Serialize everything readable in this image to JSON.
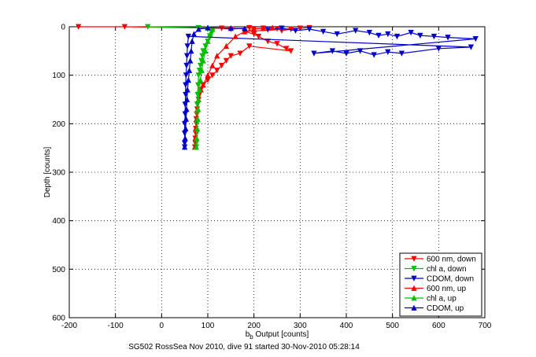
{
  "chart_data": {
    "type": "scatter",
    "xlabel_main": "b",
    "xlabel_sub": "b",
    "xlabel_rest": " Output [counts]",
    "ylabel": "Depth [counts]",
    "caption": "SG502 RossSea Nov 2010, dive 91 started 30-Nov-2010 05:28:14",
    "xlim": [
      -200,
      700
    ],
    "ylim": [
      0,
      600
    ],
    "y_reversed": true,
    "xticks": [
      -200,
      -100,
      0,
      100,
      200,
      300,
      400,
      500,
      600,
      700
    ],
    "yticks": [
      0,
      100,
      200,
      300,
      400,
      500,
      600
    ],
    "grid": true,
    "legend_position": "bottom-right",
    "series": [
      {
        "name": "600 nm, down",
        "color": "#ff0000",
        "marker": "triangle-down",
        "points": [
          [
            -180,
            0
          ],
          [
            -80,
            0
          ],
          [
            130,
            3
          ],
          [
            150,
            5
          ],
          [
            190,
            2
          ],
          [
            200,
            4
          ],
          [
            220,
            3
          ],
          [
            230,
            6
          ],
          [
            250,
            4
          ],
          [
            260,
            8
          ],
          [
            280,
            5
          ],
          [
            300,
            3
          ],
          [
            320,
            2
          ],
          [
            180,
            10
          ],
          [
            200,
            15
          ],
          [
            210,
            20
          ],
          [
            230,
            30
          ],
          [
            250,
            35
          ],
          [
            270,
            45
          ],
          [
            280,
            50
          ],
          [
            190,
            40
          ],
          [
            170,
            55
          ],
          [
            150,
            60
          ],
          [
            140,
            70
          ],
          [
            130,
            80
          ],
          [
            120,
            90
          ],
          [
            110,
            100
          ],
          [
            100,
            110
          ],
          [
            90,
            120
          ],
          [
            85,
            130
          ],
          [
            82,
            140
          ],
          [
            80,
            150
          ],
          [
            78,
            160
          ],
          [
            77,
            170
          ],
          [
            76,
            180
          ],
          [
            75,
            190
          ],
          [
            75,
            200
          ],
          [
            74,
            210
          ],
          [
            74,
            220
          ],
          [
            73,
            230
          ],
          [
            73,
            240
          ],
          [
            72,
            248
          ]
        ]
      },
      {
        "name": "chl a, down",
        "color": "#00c000",
        "marker": "triangle-down",
        "points": [
          [
            -30,
            0
          ],
          [
            80,
            2
          ],
          [
            100,
            5
          ],
          [
            110,
            10
          ],
          [
            105,
            20
          ],
          [
            100,
            30
          ],
          [
            95,
            40
          ],
          [
            90,
            50
          ],
          [
            88,
            60
          ],
          [
            86,
            70
          ],
          [
            84,
            80
          ],
          [
            82,
            90
          ],
          [
            80,
            100
          ],
          [
            79,
            120
          ],
          [
            78,
            140
          ],
          [
            77,
            160
          ],
          [
            77,
            180
          ],
          [
            76,
            200
          ],
          [
            76,
            220
          ],
          [
            75,
            240
          ],
          [
            75,
            248
          ]
        ]
      },
      {
        "name": "CDOM, down",
        "color": "#0000cc",
        "marker": "triangle-down",
        "points": [
          [
            230,
            5
          ],
          [
            260,
            3
          ],
          [
            290,
            8
          ],
          [
            320,
            5
          ],
          [
            350,
            10
          ],
          [
            380,
            15
          ],
          [
            420,
            8
          ],
          [
            450,
            12
          ],
          [
            470,
            18
          ],
          [
            490,
            15
          ],
          [
            510,
            20
          ],
          [
            540,
            12
          ],
          [
            560,
            18
          ],
          [
            590,
            20
          ],
          [
            620,
            22
          ],
          [
            680,
            25
          ],
          [
            330,
            55
          ],
          [
            370,
            50
          ],
          [
            400,
            55
          ],
          [
            430,
            50
          ],
          [
            460,
            58
          ],
          [
            490,
            52
          ],
          [
            520,
            55
          ],
          [
            600,
            45
          ],
          [
            670,
            42
          ],
          [
            58,
            20
          ],
          [
            56,
            40
          ],
          [
            55,
            60
          ],
          [
            54,
            80
          ],
          [
            53,
            100
          ],
          [
            52,
            120
          ],
          [
            52,
            140
          ],
          [
            51,
            160
          ],
          [
            51,
            180
          ],
          [
            50,
            200
          ],
          [
            50,
            220
          ],
          [
            50,
            240
          ],
          [
            50,
            248
          ]
        ]
      },
      {
        "name": "600 nm, up",
        "color": "#ff0000",
        "marker": "triangle-up",
        "points": [
          [
            72,
            248
          ],
          [
            73,
            230
          ],
          [
            74,
            210
          ],
          [
            76,
            190
          ],
          [
            78,
            170
          ],
          [
            80,
            150
          ],
          [
            85,
            130
          ],
          [
            90,
            120
          ],
          [
            100,
            100
          ],
          [
            110,
            80
          ],
          [
            120,
            60
          ],
          [
            140,
            40
          ],
          [
            160,
            20
          ],
          [
            180,
            10
          ],
          [
            200,
            5
          ],
          [
            220,
            3
          ],
          [
            240,
            2
          ]
        ]
      },
      {
        "name": "chl a, up",
        "color": "#00c000",
        "marker": "triangle-up",
        "points": [
          [
            75,
            248
          ],
          [
            76,
            230
          ],
          [
            77,
            210
          ],
          [
            78,
            190
          ],
          [
            79,
            170
          ],
          [
            80,
            150
          ],
          [
            82,
            130
          ],
          [
            84,
            110
          ],
          [
            87,
            90
          ],
          [
            90,
            70
          ],
          [
            95,
            50
          ],
          [
            100,
            30
          ],
          [
            105,
            15
          ],
          [
            110,
            5
          ]
        ]
      },
      {
        "name": "CDOM, up",
        "color": "#0000cc",
        "marker": "triangle-up",
        "points": [
          [
            50,
            248
          ],
          [
            51,
            230
          ],
          [
            52,
            210
          ],
          [
            53,
            190
          ],
          [
            54,
            170
          ],
          [
            55,
            150
          ],
          [
            56,
            130
          ],
          [
            58,
            110
          ],
          [
            60,
            90
          ],
          [
            62,
            70
          ],
          [
            64,
            50
          ],
          [
            66,
            30
          ],
          [
            70,
            15
          ],
          [
            80,
            5
          ],
          [
            100,
            2
          ],
          [
            150,
            3
          ],
          [
            180,
            4
          ]
        ]
      }
    ]
  }
}
